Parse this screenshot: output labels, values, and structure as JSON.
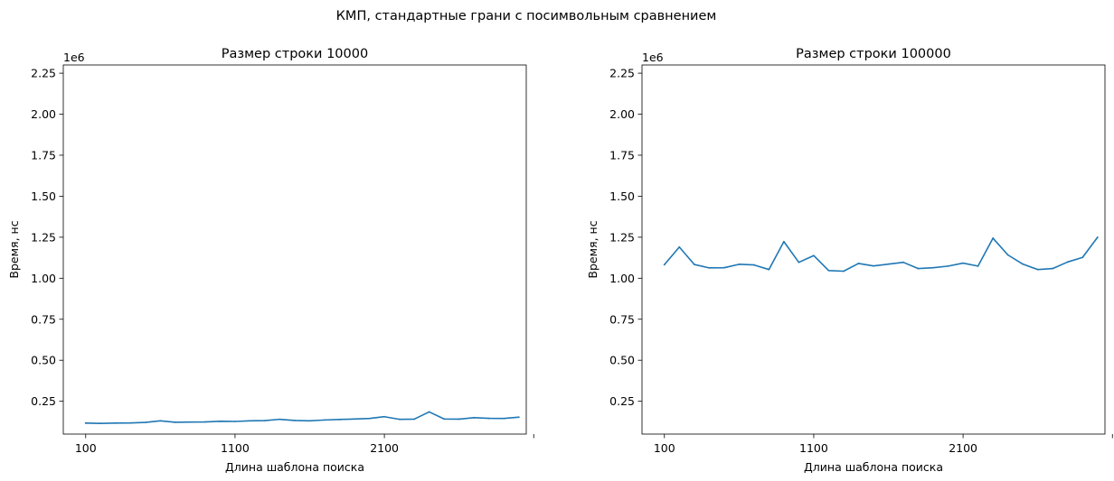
{
  "suptitle": "КМП, стандартные грани с посимвольным сравнением",
  "chart_data": [
    {
      "type": "line",
      "title": "Размер строки 10000",
      "xlabel": "Длина шаблона поиска",
      "ylabel": "Время, нс",
      "offset_text": "1e6",
      "xlim": [
        -50,
        3050
      ],
      "ylim": [
        0.05,
        2.3
      ],
      "y_scale_note": "values in units of 1e6 ns",
      "xticks": [
        100,
        1100,
        2100,
        3100
      ],
      "xtick_labels": [
        "100",
        "1100",
        "2100",
        ""
      ],
      "yticks": [
        0.25,
        0.5,
        0.75,
        1.0,
        1.25,
        1.5,
        1.75,
        2.0,
        2.25
      ],
      "ytick_labels": [
        "0.25",
        "0.50",
        "0.75",
        "1.00",
        "1.25",
        "1.50",
        "1.75",
        "2.00",
        "2.25"
      ],
      "color": "#1f77b4",
      "x": [
        100,
        200,
        300,
        400,
        500,
        600,
        700,
        800,
        900,
        1000,
        1100,
        1200,
        1300,
        1400,
        1500,
        1600,
        1700,
        1800,
        1900,
        2000,
        2100,
        2200,
        2300,
        2400,
        2500,
        2600,
        2700,
        2800,
        2900,
        3000
      ],
      "values": [
        0.117,
        0.115,
        0.117,
        0.118,
        0.121,
        0.131,
        0.122,
        0.123,
        0.124,
        0.128,
        0.127,
        0.131,
        0.132,
        0.14,
        0.133,
        0.131,
        0.136,
        0.139,
        0.142,
        0.145,
        0.156,
        0.14,
        0.141,
        0.185,
        0.142,
        0.141,
        0.15,
        0.146,
        0.145,
        0.153
      ]
    },
    {
      "type": "line",
      "title": "Размер строки 100000",
      "xlabel": "Длина шаблона поиска",
      "ylabel": "Время, нс",
      "offset_text": "1e6",
      "xlim": [
        -50,
        3050
      ],
      "ylim": [
        0.05,
        2.3
      ],
      "y_scale_note": "values in units of 1e6 ns",
      "xticks": [
        100,
        1100,
        2100,
        3100
      ],
      "xtick_labels": [
        "100",
        "1100",
        "2100",
        ""
      ],
      "yticks": [
        0.25,
        0.5,
        0.75,
        1.0,
        1.25,
        1.5,
        1.75,
        2.0,
        2.25
      ],
      "ytick_labels": [
        "0.25",
        "0.50",
        "0.75",
        "1.00",
        "1.25",
        "1.50",
        "1.75",
        "2.00",
        "2.25"
      ],
      "color": "#1f77b4",
      "x": [
        100,
        200,
        300,
        400,
        500,
        600,
        700,
        800,
        900,
        1000,
        1100,
        1200,
        1300,
        1400,
        1500,
        1600,
        1700,
        1800,
        1900,
        2000,
        2100,
        2200,
        2300,
        2400,
        2500,
        2600,
        2700,
        2800,
        2900,
        3000
      ],
      "values": [
        1.083,
        1.19,
        1.084,
        1.063,
        1.064,
        1.085,
        1.081,
        1.053,
        1.223,
        1.097,
        1.138,
        1.047,
        1.043,
        1.09,
        1.075,
        1.086,
        1.097,
        1.059,
        1.064,
        1.074,
        1.092,
        1.074,
        1.244,
        1.142,
        1.086,
        1.053,
        1.059,
        1.099,
        1.127,
        1.249
      ]
    }
  ]
}
